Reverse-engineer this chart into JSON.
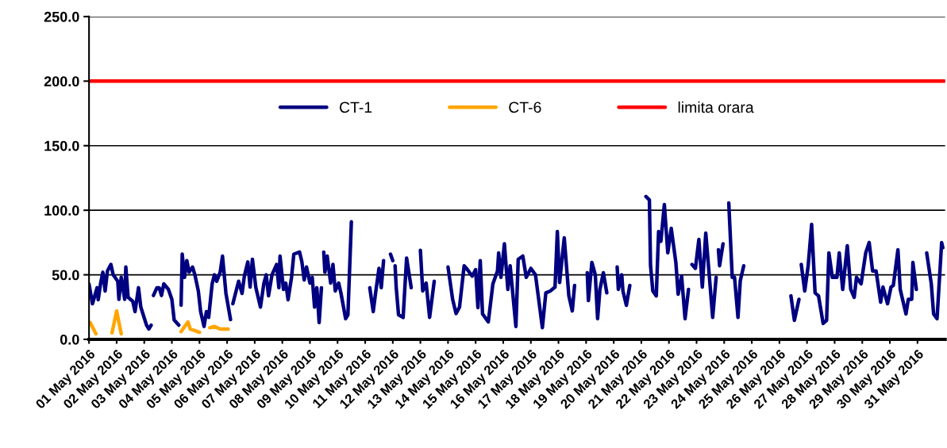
{
  "chart_data": {
    "type": "line",
    "xlim": [
      "2016-05-01",
      "2016-06-01"
    ],
    "xticks": [
      {
        "value": "2016-05-01",
        "label": "01 May 2016"
      },
      {
        "value": "2016-05-02",
        "label": "02 May 2016"
      },
      {
        "value": "2016-05-03",
        "label": "03 May 2016"
      },
      {
        "value": "2016-05-04",
        "label": "04 May 2016"
      },
      {
        "value": "2016-05-05",
        "label": "05 May 2016"
      },
      {
        "value": "2016-05-06",
        "label": "06 May 2016"
      },
      {
        "value": "2016-05-07",
        "label": "07 May 2016"
      },
      {
        "value": "2016-05-08",
        "label": "08 May 2016"
      },
      {
        "value": "2016-05-09",
        "label": "09 May 2016"
      },
      {
        "value": "2016-05-10",
        "label": "10 May 2016"
      },
      {
        "value": "2016-05-11",
        "label": "11 May 2016"
      },
      {
        "value": "2016-05-12",
        "label": "12 May 2016"
      },
      {
        "value": "2016-05-13",
        "label": "13 May 2016"
      },
      {
        "value": "2016-05-14",
        "label": "14 May 2016"
      },
      {
        "value": "2016-05-15",
        "label": "15 May 2016"
      },
      {
        "value": "2016-05-16",
        "label": "16 May 2016"
      },
      {
        "value": "2016-05-17",
        "label": "17 May 2016"
      },
      {
        "value": "2016-05-18",
        "label": "18 May 2016"
      },
      {
        "value": "2016-05-19",
        "label": "19 May 2016"
      },
      {
        "value": "2016-05-20",
        "label": "20 May 2016"
      },
      {
        "value": "2016-05-21",
        "label": "21 May 2016"
      },
      {
        "value": "2016-05-22",
        "label": "22 May 2016"
      },
      {
        "value": "2016-05-23",
        "label": "23 May 2016"
      },
      {
        "value": "2016-05-24",
        "label": "24 May 2016"
      },
      {
        "value": "2016-05-25",
        "label": "25 May 2016"
      },
      {
        "value": "2016-05-26",
        "label": "26 May 2016"
      },
      {
        "value": "2016-05-27",
        "label": "27 May 2016"
      },
      {
        "value": "2016-05-28",
        "label": "28 May 2016"
      },
      {
        "value": "2016-05-29",
        "label": "29 May 2016"
      },
      {
        "value": "2016-05-30",
        "label": "30 May 2016"
      },
      {
        "value": "2016-05-31",
        "label": "31 May 2016"
      }
    ],
    "ylim": [
      0,
      250
    ],
    "yticks": [
      {
        "value": 0,
        "label": "0.0"
      },
      {
        "value": 50,
        "label": "50.0"
      },
      {
        "value": 100,
        "label": "100.0"
      },
      {
        "value": 150,
        "label": "150.0"
      },
      {
        "value": 200,
        "label": "200.0"
      },
      {
        "value": 250,
        "label": "250.0"
      }
    ],
    "grid": "y",
    "legend": "top",
    "marker": "none",
    "line_style": "solid",
    "series": [
      {
        "name": "CT-1",
        "color": "#000080",
        "x": [
          "2016-05-01T00:00",
          "2016-05-01T03:00",
          "2016-05-01T07:00",
          "2016-05-01T08:00",
          "2016-05-01T10:00",
          "2016-05-01T12:00",
          "2016-05-01T14:00",
          "2016-05-01T16:00",
          "2016-05-01T19:00",
          "2016-05-01T21:00",
          "2016-05-02T01:00",
          "2016-05-02T02:00",
          "2016-05-02T04:00",
          "2016-05-02T07:00",
          "2016-05-02T08:00",
          "2016-05-02T10:00",
          "2016-05-02T14:00",
          "2016-05-02T16:00",
          "2016-05-02T19:00",
          "2016-05-02T21:00",
          "2016-05-03T02:00",
          "2016-05-03T04:00",
          "2016-05-03T06:00",
          "2016-05-03T07:00",
          "2016-05-03T08:00",
          "2016-05-03T11:00",
          "2016-05-03T13:00",
          "2016-05-03T15:00",
          "2016-05-03T17:00",
          "2016-05-03T21:00",
          "2016-05-04T00:00",
          "2016-05-04T02:00",
          "2016-05-04T06:00",
          "2016-05-04T07:00",
          "2016-05-04T08:00",
          "2016-05-04T09:00",
          "2016-05-04T11:00",
          "2016-05-04T13:00",
          "2016-05-04T15:00",
          "2016-05-04T18:00",
          "2016-05-04T20:00",
          "2016-05-04T23:00",
          "2016-05-05T01:00",
          "2016-05-05T04:00",
          "2016-05-05T06:00",
          "2016-05-05T08:00",
          "2016-05-05T11:00",
          "2016-05-05T13:00",
          "2016-05-05T15:00",
          "2016-05-05T18:00",
          "2016-05-05T20:00",
          "2016-05-05T23:00",
          "2016-05-06T03:00",
          "2016-05-06T04:00",
          "2016-05-06T05:00",
          "2016-05-06T10:00",
          "2016-05-06T13:00",
          "2016-05-06T15:00",
          "2016-05-06T18:00",
          "2016-05-06T20:00",
          "2016-05-06T22:00",
          "2016-05-07T01:00",
          "2016-05-07T05:00",
          "2016-05-07T08:00",
          "2016-05-07T10:00",
          "2016-05-07T12:00",
          "2016-05-07T15:00",
          "2016-05-07T19:00",
          "2016-05-07T21:00",
          "2016-05-07T22:00",
          "2016-05-08T01:00",
          "2016-05-08T03:00",
          "2016-05-08T05:00",
          "2016-05-08T08:00",
          "2016-05-08T10:00",
          "2016-05-08T15:00",
          "2016-05-08T17:00",
          "2016-05-08T19:00",
          "2016-05-08T21:00",
          "2016-05-09T00:00",
          "2016-05-09T02:00",
          "2016-05-09T04:00",
          "2016-05-09T06:00",
          "2016-05-09T08:00",
          "2016-05-09T10:00",
          "2016-05-09T11:00",
          "2016-05-09T12:00",
          "2016-05-09T13:00",
          "2016-05-09T15:00",
          "2016-05-09T18:00",
          "2016-05-09T20:00",
          "2016-05-09T22:00",
          "2016-05-10T01:00",
          "2016-05-10T03:00",
          "2016-05-10T07:00",
          "2016-05-10T09:00",
          "2016-05-10T12:00",
          "2016-05-10T19:00",
          "2016-05-11T04:00",
          "2016-05-11T07:00",
          "2016-05-11T09:00",
          "2016-05-11T12:00",
          "2016-05-11T14:00",
          "2016-05-11T16:00",
          "2016-05-11T18:00",
          "2016-05-11T22:00",
          "2016-05-12T00:00",
          "2016-05-12T01:00",
          "2016-05-12T02:00",
          "2016-05-12T03:00",
          "2016-05-12T05:00",
          "2016-05-12T09:00",
          "2016-05-12T12:00",
          "2016-05-12T16:00",
          "2016-05-12T21:00",
          "2016-05-13T00:00",
          "2016-05-13T02:00",
          "2016-05-13T05:00",
          "2016-05-13T08:00",
          "2016-05-13T12:00",
          "2016-05-13T22:00",
          "2016-05-14T00:00",
          "2016-05-14T04:00",
          "2016-05-14T07:00",
          "2016-05-14T10:00",
          "2016-05-14T14:00",
          "2016-05-14T16:00",
          "2016-05-14T21:00",
          "2016-05-15T00:00",
          "2016-05-15T02:00",
          "2016-05-15T04:00",
          "2016-05-15T06:00",
          "2016-05-15T11:00",
          "2016-05-15T15:00",
          "2016-05-15T19:00",
          "2016-05-15T20:00",
          "2016-05-15T22:00",
          "2016-05-16T01:00",
          "2016-05-16T04:00",
          "2016-05-16T06:00",
          "2016-05-16T11:00",
          "2016-05-16T13:00",
          "2016-05-16T17:00",
          "2016-05-16T20:00",
          "2016-05-17T00:00",
          "2016-05-17T04:00",
          "2016-05-17T10:00",
          "2016-05-17T13:00",
          "2016-05-17T17:00",
          "2016-05-17T21:00",
          "2016-05-17T23:00",
          "2016-05-18T01:00",
          "2016-05-18T05:00",
          "2016-05-18T09:00",
          "2016-05-18T12:00",
          "2016-05-18T14:00",
          "2016-05-18T18:00",
          "2016-05-19T01:00",
          "2016-05-19T02:00",
          "2016-05-19T05:00",
          "2016-05-19T08:00",
          "2016-05-19T10:00",
          "2016-05-19T12:00",
          "2016-05-19T15:00",
          "2016-05-19T18:00",
          "2016-05-19T23:00",
          "2016-05-20T03:00",
          "2016-05-20T04:00",
          "2016-05-20T07:00",
          "2016-05-20T08:00",
          "2016-05-20T11:00",
          "2016-05-20T14:00",
          "2016-05-21T00:00",
          "2016-05-21T04:00",
          "2016-05-21T07:00",
          "2016-05-21T08:00",
          "2016-05-21T10:00",
          "2016-05-21T13:00",
          "2016-05-21T15:00",
          "2016-05-21T17:00",
          "2016-05-21T20:00",
          "2016-05-21T23:00",
          "2016-05-22T02:00",
          "2016-05-22T06:00",
          "2016-05-22T08:00",
          "2016-05-22T11:00",
          "2016-05-22T14:00",
          "2016-05-22T17:00",
          "2016-05-22T18:00",
          "2016-05-22T20:00",
          "2016-05-22T23:00",
          "2016-05-23T02:00",
          "2016-05-23T05:00",
          "2016-05-23T08:00",
          "2016-05-23T11:00",
          "2016-05-23T14:00",
          "2016-05-23T17:00",
          "2016-05-23T18:00",
          "2016-05-23T19:00",
          "2016-05-23T20:00",
          "2016-05-23T23:00",
          "2016-05-24T01:00",
          "2016-05-24T04:00",
          "2016-05-24T07:00",
          "2016-05-24T09:00",
          "2016-05-24T12:00",
          "2016-05-24T14:00",
          "2016-05-24T17:00",
          "2016-05-26T00:00",
          "2016-05-26T10:00",
          "2016-05-26T13:00",
          "2016-05-26T17:00",
          "2016-05-26T18:00",
          "2016-05-26T19:00",
          "2016-05-26T22:00",
          "2016-05-27T01:00",
          "2016-05-27T04:00",
          "2016-05-27T07:00",
          "2016-05-27T10:00",
          "2016-05-27T14:00",
          "2016-05-27T17:00",
          "2016-05-27T19:00",
          "2016-05-27T22:00",
          "2016-05-28T02:00",
          "2016-05-28T04:00",
          "2016-05-28T07:00",
          "2016-05-28T11:00",
          "2016-05-28T14:00",
          "2016-05-28T17:00",
          "2016-05-28T19:00",
          "2016-05-28T23:00",
          "2016-05-29T03:00",
          "2016-05-29T06:00",
          "2016-05-29T09:00",
          "2016-05-29T12:00",
          "2016-05-29T16:00",
          "2016-05-29T18:00",
          "2016-05-29T22:00",
          "2016-05-30T01:00",
          "2016-05-30T03:00",
          "2016-05-30T07:00",
          "2016-05-30T09:00",
          "2016-05-30T14:00",
          "2016-05-30T16:00",
          "2016-05-30T19:00",
          "2016-05-30T20:00",
          "2016-05-30T23:00",
          "2016-05-31T04:00",
          "2016-05-31T08:00",
          "2016-05-31T12:00",
          "2016-05-31T14:00",
          "2016-05-31T17:00",
          "2016-05-31T21:00",
          "2016-05-31T22:00"
        ],
        "values": [
          42.8,
          27.6,
          40,
          30.7,
          43,
          52,
          37.5,
          53,
          58,
          50,
          45,
          31,
          48,
          31,
          56,
          32.5,
          29.5,
          21.5,
          40,
          25,
          11,
          8,
          11,
          null,
          34,
          40,
          40,
          34,
          43,
          38.7,
          31,
          15,
          11,
          null,
          26.5,
          66,
          48,
          61,
          52,
          56,
          50,
          37.5,
          21.5,
          10,
          21.5,
          17,
          43,
          50,
          45,
          52,
          64.5,
          35.6,
          15.3,
          null,
          27.6,
          45,
          35.6,
          49,
          60,
          40.5,
          62,
          40,
          25,
          43.6,
          50,
          33.7,
          50,
          58,
          40,
          64.5,
          38.7,
          43.6,
          30.7,
          48,
          66,
          67.6,
          60,
          46,
          56,
          43.6,
          48,
          25,
          40,
          13,
          40,
          null,
          67.6,
          52,
          64.5,
          43.6,
          58,
          37.5,
          43.6,
          35.6,
          16,
          19,
          91,
          null,
          40,
          21.5,
          35.6,
          55,
          40,
          61,
          null,
          66,
          61,
          null,
          57,
          40,
          19,
          17,
          63,
          40,
          null,
          69,
          37.5,
          43.6,
          17,
          45,
          null,
          56,
          31,
          20,
          25,
          57,
          55,
          49,
          54,
          24.6,
          61,
          19.7,
          13.5,
          43,
          53,
          67,
          48,
          74,
          38.7,
          57,
          10,
          62,
          64.5,
          48,
          55,
          50,
          9,
          36,
          37.5,
          40.5,
          83.5,
          44,
          78.6,
          33.7,
          22,
          41.8,
          null,
          51.6,
          30,
          59.6,
          50,
          16,
          38.7,
          51.6,
          36,
          null,
          56,
          38.7,
          50,
          37.5,
          26.4,
          41.8,
          null,
          110.6,
          108,
          57,
          37.5,
          33.7,
          83.5,
          76,
          104.4,
          67,
          86,
          59.6,
          35,
          49,
          16,
          38.7,
          null,
          58,
          55,
          77.4,
          40.5,
          82.3,
          50,
          17,
          48,
          null,
          69.4,
          57,
          74,
          null,
          105.6,
          48,
          48,
          17,
          45.5,
          57,
          null,
          33.7,
          14.7,
          31,
          null,
          58,
          37.5,
          57,
          89,
          36,
          33.7,
          12.3,
          14.7,
          67,
          48,
          48,
          67,
          38.7,
          72.5,
          38.7,
          32.5,
          48,
          43,
          67,
          75,
          53,
          53,
          28.8,
          40.5,
          27.6,
          40.5,
          41.8,
          69.4,
          38.7,
          19.7,
          31,
          31,
          59.6,
          38.7,
          null,
          67,
          43,
          19.7,
          16,
          75,
          71
        ]
      },
      {
        "name": "CT-6",
        "color": "#ffa500",
        "x": [
          "2016-05-01T01:00",
          "2016-05-01T06:00",
          "2016-05-01T10:00",
          "2016-05-01T20:00",
          "2016-05-02T00:00",
          "2016-05-02T04:00",
          "2016-05-03T12:00",
          "2016-05-04T08:00",
          "2016-05-04T14:00",
          "2016-05-04T16:00",
          "2016-05-05T00:00",
          "2016-05-05T04:00",
          "2016-05-05T09:00",
          "2016-05-05T13:00",
          "2016-05-05T18:00",
          "2016-05-06T01:00"
        ],
        "values": [
          13,
          4.3,
          null,
          5,
          22,
          4.3,
          null,
          6,
          13.5,
          8,
          5.5,
          null,
          9,
          10,
          8,
          8
        ]
      },
      {
        "name": "limita orara",
        "color": "#ff0000",
        "x": [
          "2016-05-01",
          "2016-06-01"
        ],
        "values": [
          200,
          200
        ]
      }
    ]
  }
}
